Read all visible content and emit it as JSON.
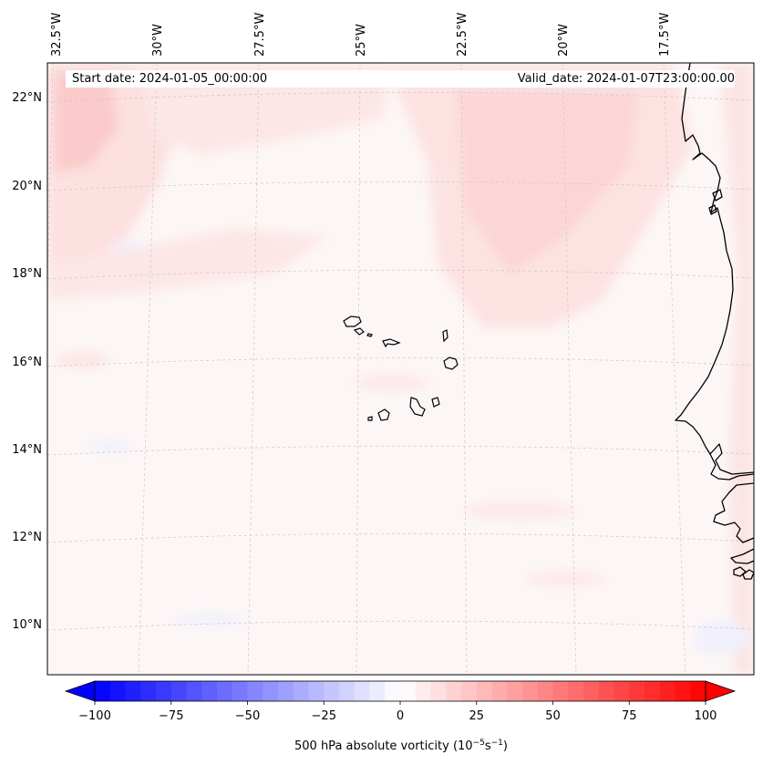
{
  "header": {
    "start_date": "Start date: 2024-01-05_00:00:00",
    "valid_date": "Valid_date: 2024-01-07T23:00:00.00"
  },
  "longitude_labels": [
    "32.5°W",
    "30°W",
    "27.5°W",
    "25°W",
    "22.5°W",
    "20°W",
    "17.5°W"
  ],
  "latitude_labels": [
    "22°N",
    "20°N",
    "18°N",
    "16°N",
    "14°N",
    "12°N",
    "10°N"
  ],
  "colorbar": {
    "ticks": [
      "−100",
      "−75",
      "−50",
      "−25",
      "0",
      "25",
      "50",
      "75",
      "100"
    ],
    "label": "500 hPa absolute vorticity",
    "units_base": "10",
    "units_exp1": "−5",
    "units_s": "s",
    "units_exp2": "−1",
    "range": [
      -100,
      100
    ],
    "levels": 40,
    "colors": {
      "negative": "#0000ff",
      "zero": "#ffffff",
      "positive": "#ff0000"
    }
  },
  "map": {
    "field_background": "#fdf6f6",
    "coast_color": "#000000",
    "grid_color": "#c8c8c8"
  }
}
